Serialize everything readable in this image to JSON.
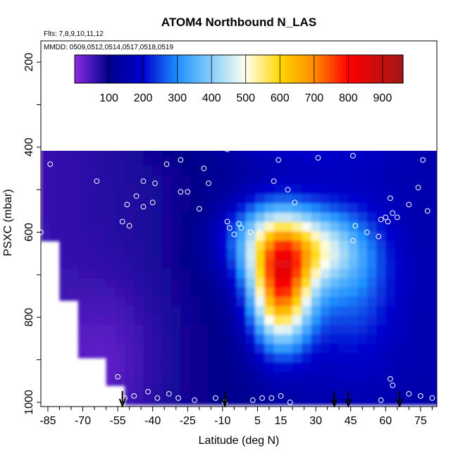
{
  "chart_data": {
    "type": "heatmap",
    "title": "ATOM4 Northbound N_LAS",
    "subtitle_flights": "Flts: 7,8,9,10,11,12",
    "subtitle_dates": "MMDD: 0509,0512,0514,0517,0518,0519",
    "xlabel": "Latitude (deg N)",
    "ylabel": "PSXC (mbar)",
    "xlim": [
      -88,
      82
    ],
    "ylim": [
      1010,
      150
    ],
    "y_reversed": true,
    "x_ticks": [
      "-85",
      "-70",
      "-55",
      "-40",
      "-25",
      "-10",
      "5",
      "15",
      "30",
      "45",
      "60",
      "75"
    ],
    "x_tick_values": [
      -85,
      -70,
      -55,
      -40,
      -25,
      -10,
      5,
      15,
      30,
      45,
      60,
      75
    ],
    "y_ticks": [
      "200",
      "400",
      "600",
      "800",
      "1000"
    ],
    "y_tick_values": [
      200,
      400,
      600,
      800,
      1000
    ],
    "colorbar": {
      "min": 0,
      "max": 960,
      "tick_labels": [
        "100",
        "200",
        "300",
        "400",
        "500",
        "600",
        "700",
        "800",
        "900"
      ],
      "tick_values": [
        100,
        200,
        300,
        400,
        500,
        600,
        700,
        800,
        900
      ],
      "boundaries": [
        0,
        100,
        200,
        300,
        400,
        500,
        600,
        700,
        800,
        900,
        960
      ],
      "colors": [
        "#8a2be2",
        "#00008b",
        "#0000cd",
        "#1e90ff",
        "#87cefa",
        "#fffff0",
        "#ffd700",
        "#ff8c00",
        "#ff0000",
        "#b22222"
      ]
    },
    "grid": false,
    "legend": "colorbar-top",
    "arrow_markers_lat": [
      -53,
      -9,
      38,
      44,
      66
    ],
    "sample_points": [
      [
        -70,
        190
      ],
      [
        -67,
        190
      ],
      [
        -64,
        190
      ],
      [
        -61,
        190
      ],
      [
        -74,
        205
      ],
      [
        -72,
        205
      ],
      [
        -86,
        215
      ],
      [
        -83,
        215
      ],
      [
        -22,
        210
      ],
      [
        24,
        185
      ],
      [
        62,
        215
      ],
      [
        65,
        205
      ],
      [
        67,
        215
      ],
      [
        -43,
        260
      ],
      [
        -42,
        250
      ],
      [
        -37,
        250
      ],
      [
        -32,
        245
      ],
      [
        -26,
        240
      ],
      [
        -14,
        275
      ],
      [
        -9,
        265
      ],
      [
        1,
        315
      ],
      [
        3,
        265
      ],
      [
        9,
        265
      ],
      [
        16,
        265
      ],
      [
        20,
        260
      ],
      [
        23,
        265
      ],
      [
        67,
        255
      ],
      [
        73,
        275
      ],
      [
        76,
        280
      ],
      [
        -60,
        320
      ],
      [
        -54,
        320
      ],
      [
        -50,
        315
      ],
      [
        -4,
        320
      ],
      [
        -2,
        315
      ],
      [
        5,
        315
      ],
      [
        30,
        330
      ],
      [
        36,
        360
      ],
      [
        38,
        330
      ],
      [
        40,
        340
      ],
      [
        42,
        330
      ],
      [
        44,
        330
      ],
      [
        46,
        330
      ],
      [
        48,
        330
      ],
      [
        50,
        330
      ],
      [
        53,
        330
      ],
      [
        54,
        300
      ],
      [
        56,
        315
      ],
      [
        60,
        325
      ],
      [
        63,
        295
      ],
      [
        66,
        270
      ],
      [
        -77,
        395
      ],
      [
        -55,
        395
      ],
      [
        -28,
        430
      ],
      [
        -34,
        440
      ],
      [
        -18,
        450
      ],
      [
        -8,
        405
      ],
      [
        14,
        430
      ],
      [
        33,
        380
      ],
      [
        41,
        360
      ],
      [
        43,
        355
      ],
      [
        46,
        420
      ],
      [
        31,
        425
      ],
      [
        59,
        360
      ],
      [
        78,
        315
      ],
      [
        76,
        430
      ],
      [
        -84,
        440
      ],
      [
        -64,
        480
      ],
      [
        -44,
        480
      ],
      [
        -39,
        485
      ],
      [
        -40,
        530
      ],
      [
        -51,
        535
      ],
      [
        -47,
        515
      ],
      [
        -44,
        540
      ],
      [
        -28,
        505
      ],
      [
        -25,
        505
      ],
      [
        -20,
        545
      ],
      [
        -16,
        485
      ],
      [
        -8,
        575
      ],
      [
        12,
        480
      ],
      [
        21,
        530
      ],
      [
        18,
        500
      ],
      [
        62,
        520
      ],
      [
        70,
        535
      ],
      [
        74,
        495
      ],
      [
        78,
        550
      ],
      [
        65,
        565
      ],
      [
        63,
        555
      ],
      [
        -88,
        600
      ],
      [
        -53,
        575
      ],
      [
        -50,
        585
      ],
      [
        -7,
        590
      ],
      [
        -5,
        605
      ],
      [
        -2,
        590
      ],
      [
        -3,
        580
      ],
      [
        2,
        600
      ],
      [
        6,
        600
      ],
      [
        47,
        585
      ],
      [
        52,
        600
      ],
      [
        46,
        620
      ],
      [
        57,
        610
      ],
      [
        58,
        570
      ],
      [
        60,
        565
      ],
      [
        61,
        575
      ],
      [
        -79,
        810
      ],
      [
        -55,
        940
      ],
      [
        -52,
        990
      ],
      [
        -48,
        985
      ],
      [
        -42,
        975
      ],
      [
        -38,
        990
      ],
      [
        -33,
        980
      ],
      [
        -29,
        990
      ],
      [
        -22,
        995
      ],
      [
        -13,
        990
      ],
      [
        -9,
        1000
      ],
      [
        3,
        995
      ],
      [
        7,
        990
      ],
      [
        11,
        990
      ],
      [
        15,
        985
      ],
      [
        19,
        1000
      ],
      [
        32,
        690
      ],
      [
        58,
        995
      ],
      [
        62,
        945
      ],
      [
        63,
        960
      ],
      [
        70,
        980
      ],
      [
        75,
        985
      ],
      [
        80,
        990
      ]
    ]
  }
}
